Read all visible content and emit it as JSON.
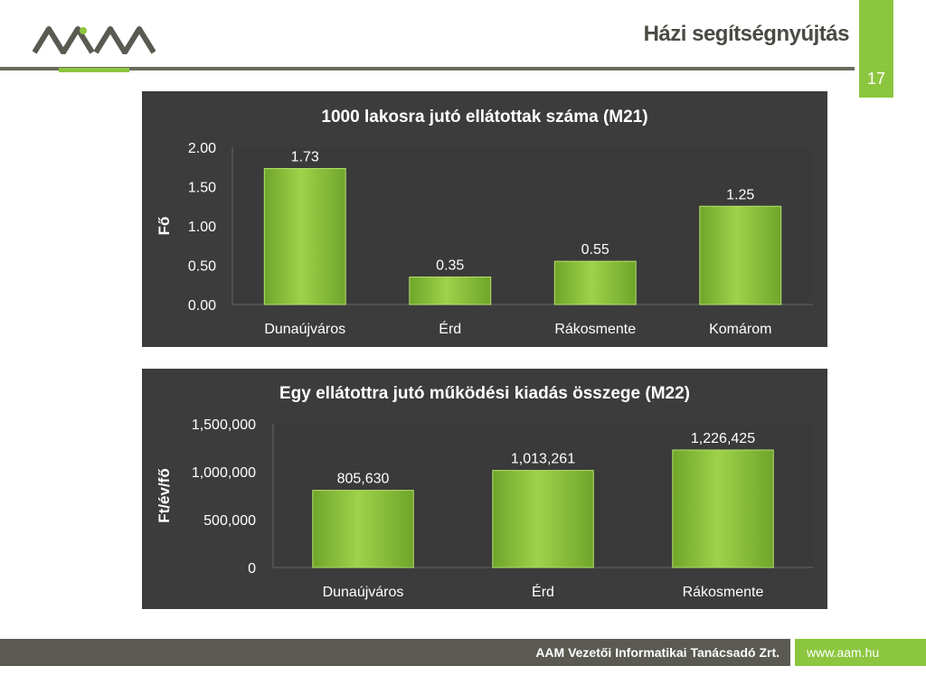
{
  "header": {
    "title": "Házi segítségnyújtás",
    "page_number": "17",
    "logo_icon": "aam-logo-icon"
  },
  "footer": {
    "company": "AAM Vezetői Informatikai Tanácsadó Zrt.",
    "url": "www.aam.hu"
  },
  "colors": {
    "accent_green": "#8cc63f",
    "bar_green": "#8cc63f",
    "panel_bg": "#3c3c3c",
    "dark_gray": "#5a5a52"
  },
  "chart_data": [
    {
      "type": "bar",
      "title": "1000 lakosra jutó ellátottak száma (M21)",
      "ylabel": "Fő",
      "xlabel": "",
      "categories": [
        "Dunaújváros",
        "Érd",
        "Rákosmente",
        "Komárom"
      ],
      "values": [
        1.73,
        0.35,
        0.55,
        1.25
      ],
      "value_labels": [
        "1.73",
        "0.35",
        "0.55",
        "1.25"
      ],
      "ylim": [
        0,
        2
      ],
      "yticks": [
        "0.00",
        "0.50",
        "1.00",
        "1.50",
        "2.00"
      ],
      "grid": false
    },
    {
      "type": "bar",
      "title": "Egy ellátottra jutó működési kiadás összege (M22)",
      "ylabel": "Ft/év/fő",
      "xlabel": "",
      "categories": [
        "Dunaújváros",
        "Érd",
        "Rákosmente"
      ],
      "values": [
        805630,
        1013261,
        1226425
      ],
      "value_labels": [
        "805,630",
        "1,013,261",
        "1,226,425"
      ],
      "ylim": [
        0,
        1500000
      ],
      "yticks": [
        "0",
        "500,000",
        "1,000,000",
        "1,500,000"
      ],
      "grid": false
    }
  ]
}
